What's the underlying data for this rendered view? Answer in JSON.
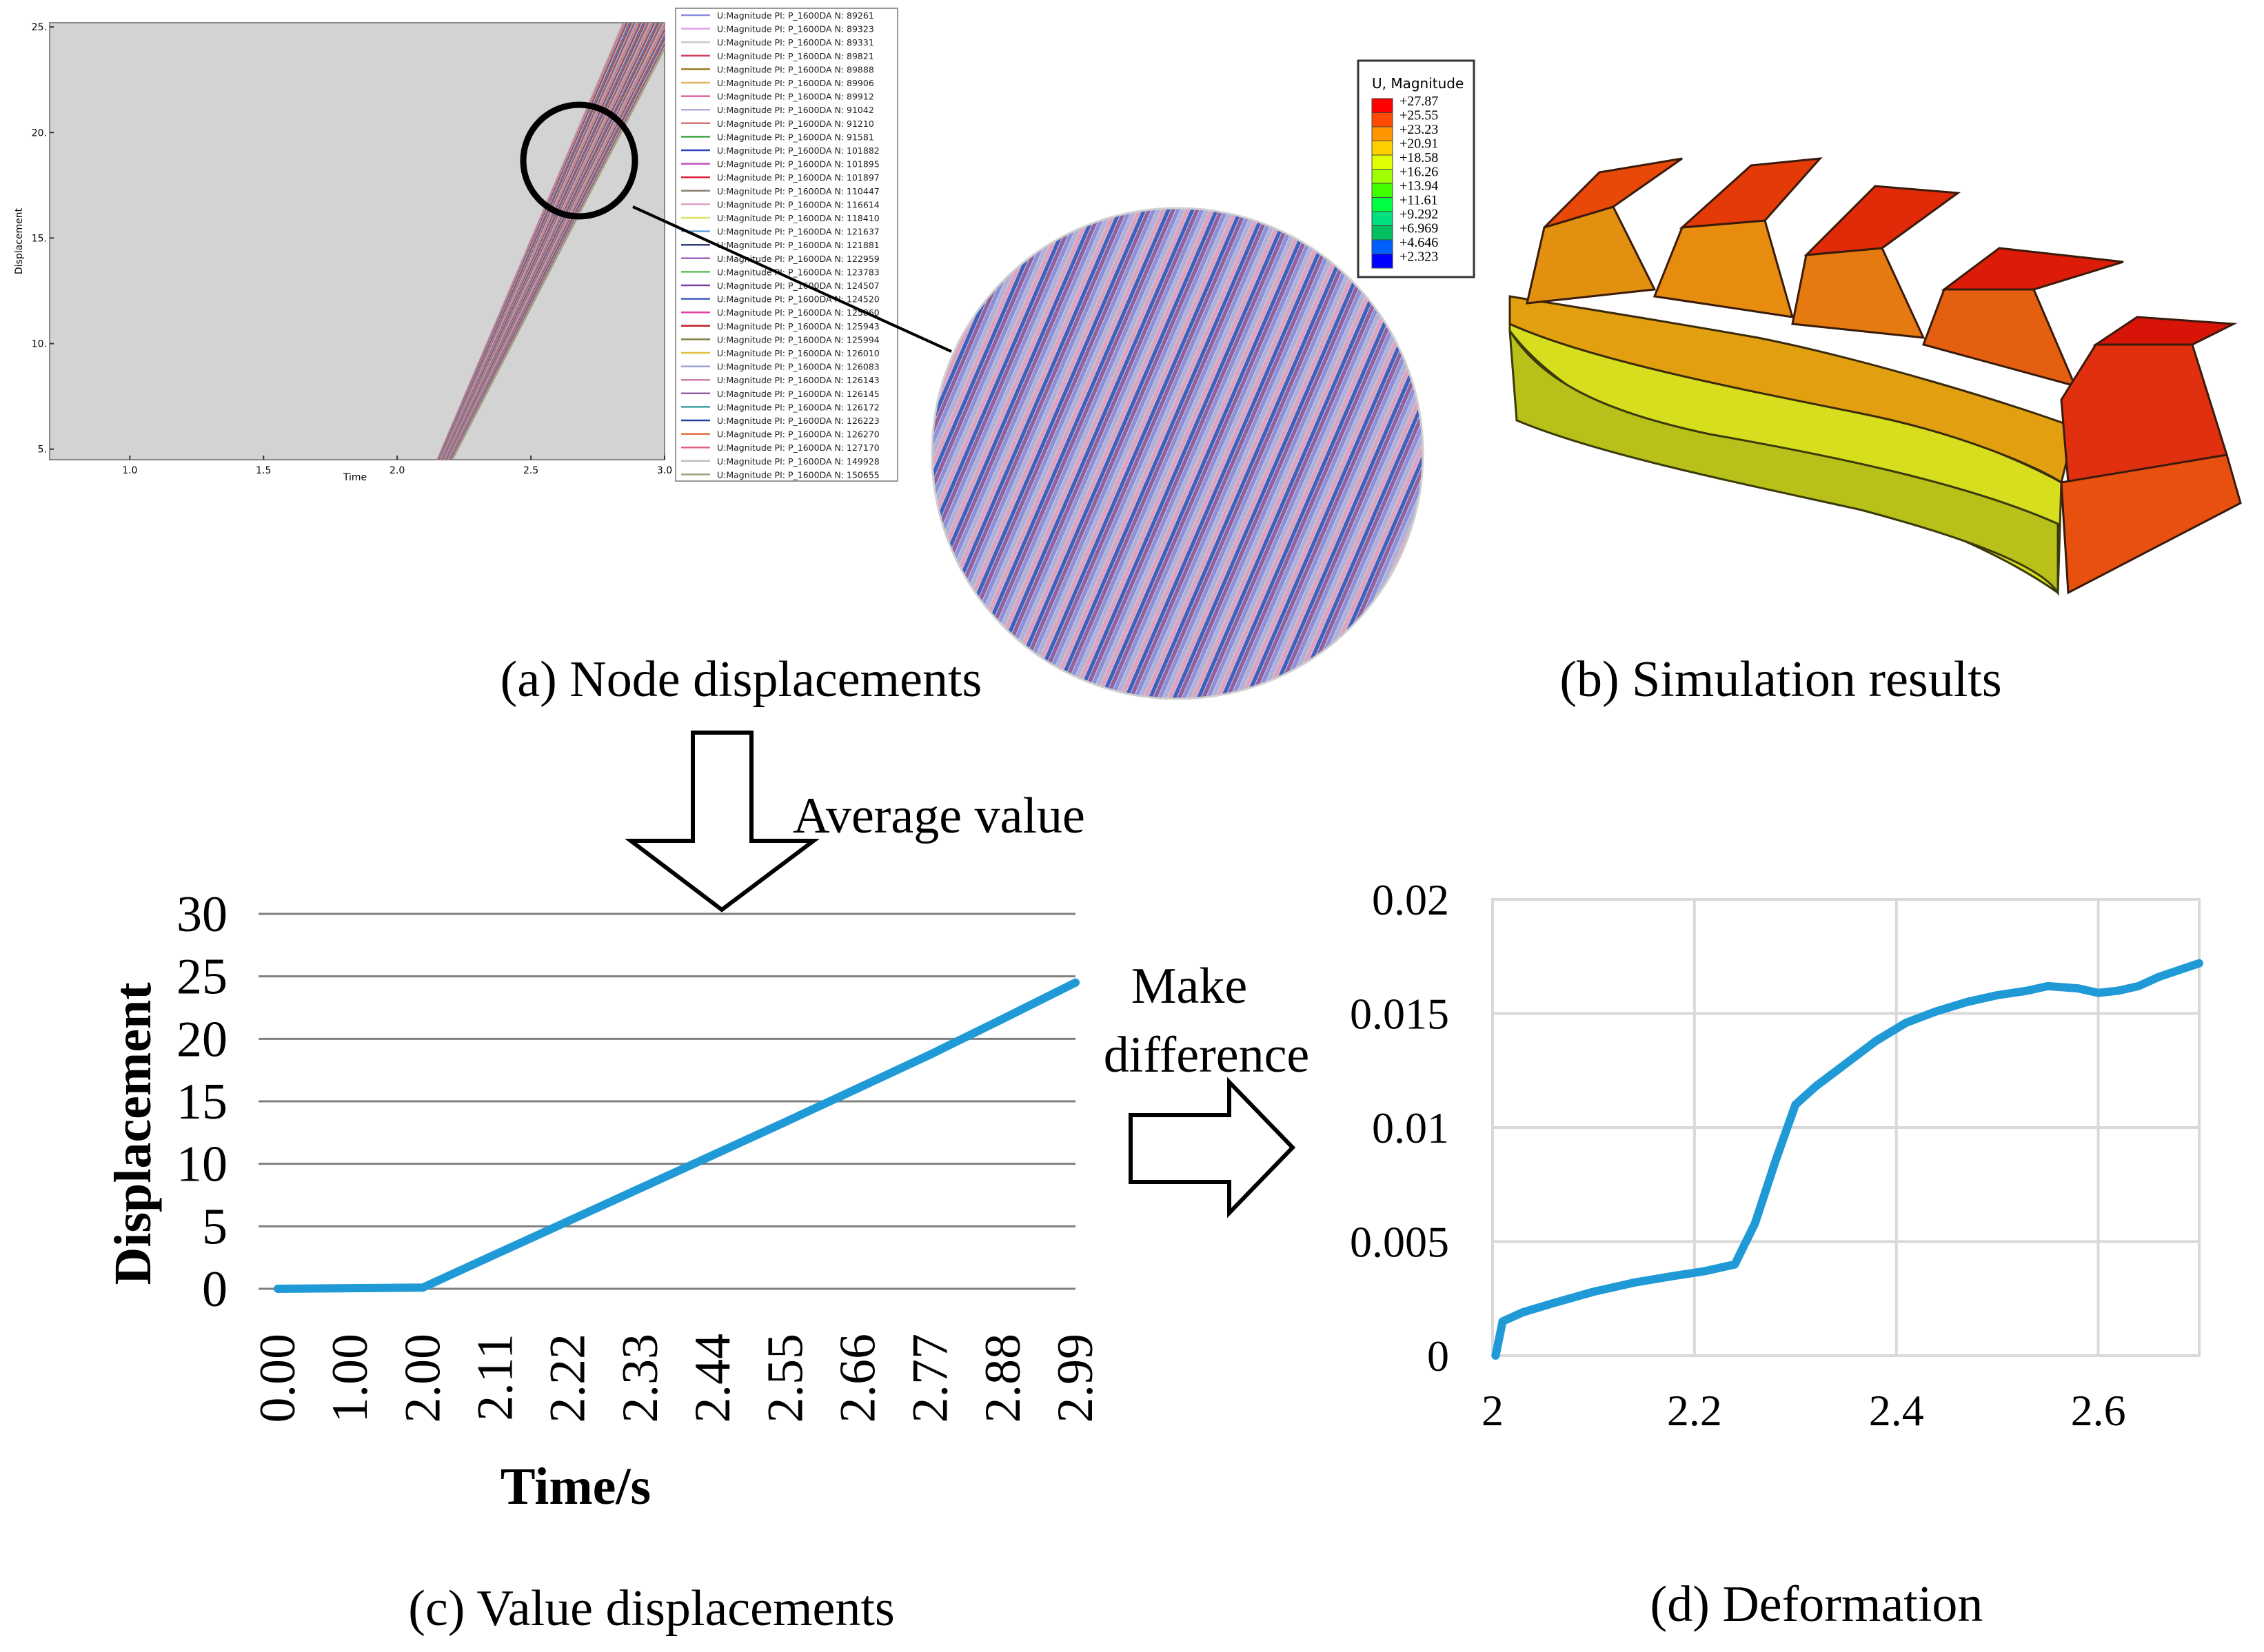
{
  "panels": {
    "a_caption": "(a) Node displacements",
    "b_caption": "(b) Simulation results",
    "c_caption": "(c) Value displacements",
    "d_caption": "(d) Deformation",
    "avg_label": "Average value",
    "diff_label_1": "Make",
    "diff_label_2": "difference"
  },
  "chart_data": [
    {
      "id": "a",
      "type": "line",
      "title": "",
      "xlabel": "Time",
      "ylabel": "Displacement",
      "xlim": [
        0.7,
        3.0
      ],
      "ylim": [
        4.5,
        25.2
      ],
      "x_ticks": [
        "1.0",
        "1.5",
        "2.0",
        "2.5",
        "3.0"
      ],
      "y_ticks": [
        "5.",
        "10.",
        "15.",
        "20.",
        "25."
      ],
      "series_start": [
        2.15,
        4.5
      ],
      "series_end": [
        3.0,
        25.2
      ],
      "legend": [
        {
          "label": "U:Magnitude PI: P_1600DA N: 89261",
          "color": "#8b8fdc"
        },
        {
          "label": "U:Magnitude PI: P_1600DA N: 89323",
          "color": "#e8a0e8"
        },
        {
          "label": "U:Magnitude PI: P_1600DA N: 89331",
          "color": "#c8c8c8"
        },
        {
          "label": "U:Magnitude PI: P_1600DA N: 89821",
          "color": "#d04060"
        },
        {
          "label": "U:Magnitude PI: P_1600DA N: 89888",
          "color": "#9a7a2a"
        },
        {
          "label": "U:Magnitude PI: P_1600DA N: 89906",
          "color": "#e0b060"
        },
        {
          "label": "U:Magnitude PI: P_1600DA N: 89912",
          "color": "#e060a0"
        },
        {
          "label": "U:Magnitude PI: P_1600DA N: 91042",
          "color": "#b0b0d8"
        },
        {
          "label": "U:Magnitude PI: P_1600DA N: 91210",
          "color": "#d07878"
        },
        {
          "label": "U:Magnitude PI: P_1600DA N: 91581",
          "color": "#40a040"
        },
        {
          "label": "U:Magnitude PI: P_1600DA N: 101882",
          "color": "#3040c0"
        },
        {
          "label": "U:Magnitude PI: P_1600DA N: 101895",
          "color": "#c050c0"
        },
        {
          "label": "U:Magnitude PI: P_1600DA N: 101897",
          "color": "#e02040"
        },
        {
          "label": "U:Magnitude PI: P_1600DA N: 110447",
          "color": "#908070"
        },
        {
          "label": "U:Magnitude PI: P_1600DA N: 116614",
          "color": "#e0a0c0"
        },
        {
          "label": "U:Magnitude PI: P_1600DA N: 118410",
          "color": "#e0e060"
        },
        {
          "label": "U:Magnitude PI: P_1600DA N: 121637",
          "color": "#60a0e0"
        },
        {
          "label": "U:Magnitude PI: P_1600DA N: 121881",
          "color": "#304080"
        },
        {
          "label": "U:Magnitude PI: P_1600DA N: 122959",
          "color": "#a060c0"
        },
        {
          "label": "U:Magnitude PI: P_1600DA N: 123783",
          "color": "#60c060"
        },
        {
          "label": "U:Magnitude PI: P_1600DA N: 124507",
          "color": "#8040a0"
        },
        {
          "label": "U:Magnitude PI: P_1600DA N: 124520",
          "color": "#4060c0"
        },
        {
          "label": "U:Magnitude PI: P_1600DA N: 125860",
          "color": "#e040a0"
        },
        {
          "label": "U:Magnitude PI: P_1600DA N: 125943",
          "color": "#c02020"
        },
        {
          "label": "U:Magnitude PI: P_1600DA N: 125994",
          "color": "#808040"
        },
        {
          "label": "U:Magnitude PI: P_1600DA N: 126010",
          "color": "#e0c040"
        },
        {
          "label": "U:Magnitude PI: P_1600DA N: 126083",
          "color": "#a0a0e0"
        },
        {
          "label": "U:Magnitude PI: P_1600DA N: 126143",
          "color": "#d080b0"
        },
        {
          "label": "U:Magnitude PI: P_1600DA N: 126145",
          "color": "#9060a0"
        },
        {
          "label": "U:Magnitude PI: P_1600DA N: 126172",
          "color": "#40a0a0"
        },
        {
          "label": "U:Magnitude PI: P_1600DA N: 126223",
          "color": "#2040a0"
        },
        {
          "label": "U:Magnitude PI: P_1600DA N: 126270",
          "color": "#e07040"
        },
        {
          "label": "U:Magnitude PI: P_1600DA N: 127170",
          "color": "#e06080"
        },
        {
          "label": "U:Magnitude PI: P_1600DA N: 149928",
          "color": "#c0c0c0"
        },
        {
          "label": "U:Magnitude PI: P_1600DA N: 150655",
          "color": "#a0a080"
        }
      ]
    },
    {
      "id": "b",
      "type": "heatmap",
      "title": "U, Magnitude",
      "legend_values": [
        "+27.87",
        "+25.55",
        "+23.23",
        "+20.91",
        "+18.58",
        "+16.26",
        "+13.94",
        "+11.61",
        "+9.292",
        "+6.969",
        "+4.646",
        "+2.323"
      ],
      "legend_colors": [
        "#ff0000",
        "#ff4a00",
        "#ff9600",
        "#ffd000",
        "#e0ff00",
        "#a0ff00",
        "#40ff00",
        "#00ff40",
        "#00e080",
        "#00c060",
        "#0060ff",
        "#0000ff"
      ]
    },
    {
      "id": "c",
      "type": "line",
      "title": "",
      "xlabel": "Time/s",
      "ylabel": "Displacement",
      "categories": [
        "0.00",
        "1.00",
        "2.00",
        "2.11",
        "2.22",
        "2.33",
        "2.44",
        "2.55",
        "2.66",
        "2.77",
        "2.88",
        "2.99"
      ],
      "y_ticks": [
        "0",
        "5",
        "10",
        "15",
        "20",
        "25",
        "30"
      ],
      "ylim": [
        0,
        30
      ],
      "values": [
        0,
        0.05,
        0.1,
        2.75,
        5.4,
        8.05,
        10.7,
        13.35,
        16.05,
        18.75,
        21.6,
        24.5
      ],
      "color": "#1f9ad6"
    },
    {
      "id": "d",
      "type": "line",
      "title": "",
      "xlabel": "",
      "ylabel": "",
      "x_ticks": [
        "2",
        "2.2",
        "2.4",
        "2.6"
      ],
      "y_ticks": [
        "0",
        "0.005",
        "0.01",
        "0.015",
        "0.02"
      ],
      "xlim": [
        2.0,
        2.7
      ],
      "ylim": [
        0,
        0.02
      ],
      "color": "#1f9ad6",
      "x": [
        2.003,
        2.01,
        2.03,
        2.06,
        2.1,
        2.14,
        2.18,
        2.21,
        2.24,
        2.26,
        2.28,
        2.3,
        2.32,
        2.35,
        2.38,
        2.41,
        2.44,
        2.47,
        2.5,
        2.53,
        2.55,
        2.58,
        2.6,
        2.62,
        2.64,
        2.66,
        2.68,
        2.7
      ],
      "y": [
        0,
        0.0015,
        0.0019,
        0.0023,
        0.0028,
        0.0032,
        0.0035,
        0.0037,
        0.004,
        0.0058,
        0.0085,
        0.011,
        0.0118,
        0.0128,
        0.0138,
        0.0146,
        0.0151,
        0.0155,
        0.0158,
        0.016,
        0.0162,
        0.0161,
        0.0159,
        0.016,
        0.0162,
        0.0166,
        0.0169,
        0.0172
      ]
    }
  ]
}
